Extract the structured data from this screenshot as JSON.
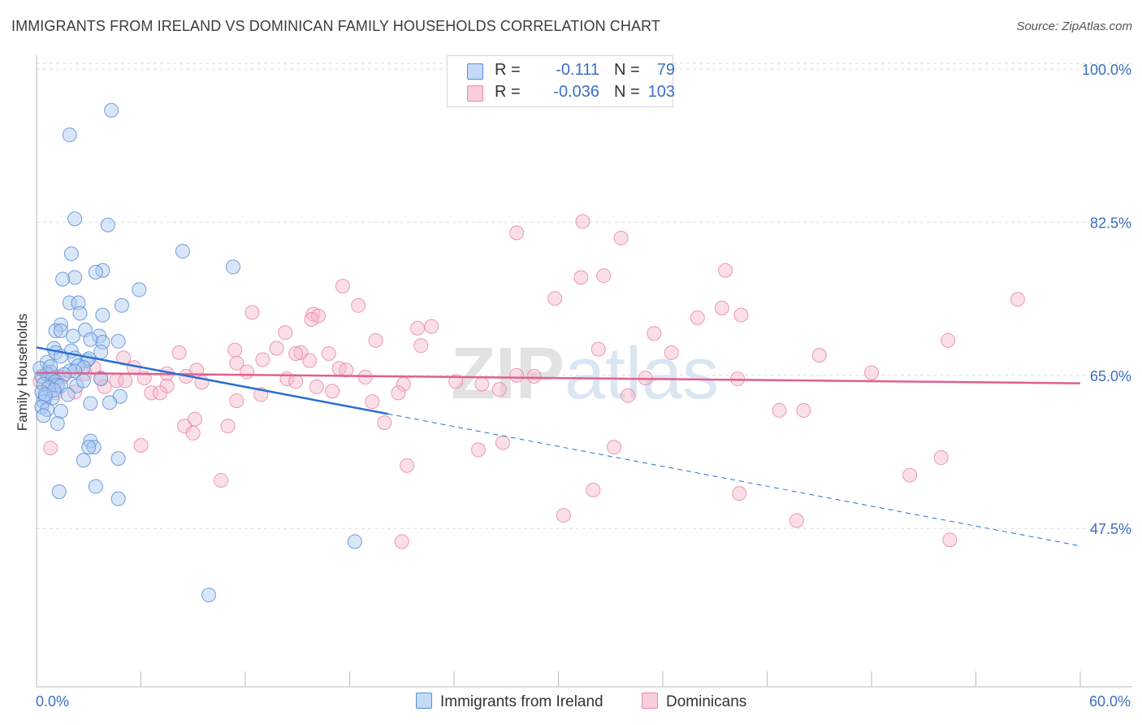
{
  "title": "IMMIGRANTS FROM IRELAND VS DOMINICAN FAMILY HOUSEHOLDS CORRELATION CHART",
  "source": "Source: ZipAtlas.com",
  "watermark": "ZIPatlas",
  "colors": {
    "ireland_fill": "#a8c8f0",
    "ireland_stroke": "#5a8fd6",
    "ireland_line": "#2a6fd1",
    "dominican_fill": "#f6b8cc",
    "dominican_stroke": "#e88aa8",
    "dominican_line": "#e0608e",
    "axis_text": "#3a6fc4",
    "grid": "#dddddd"
  },
  "legend_stats": [
    {
      "r_label": "R =",
      "r_value": "-0.111",
      "n_label": "N =",
      "n_value": "79"
    },
    {
      "r_label": "R =",
      "r_value": "-0.036",
      "n_label": "N =",
      "n_value": "103"
    }
  ],
  "chart_data": {
    "type": "scatter",
    "title": "IMMIGRANTS FROM IRELAND VS DOMINICAN FAMILY HOUSEHOLDS CORRELATION CHART",
    "xlabel": "",
    "ylabel": "Family Households",
    "xlim": [
      0,
      60
    ],
    "ylim": [
      29.4,
      101.6
    ],
    "x_tick_labels": [
      "0.0%",
      "60.0%"
    ],
    "y_ticks": [
      47.5,
      65.0,
      82.5,
      100.0
    ],
    "y_tick_labels": [
      "47.5%",
      "65.0%",
      "82.5%",
      "100.0%"
    ],
    "grid": true,
    "legend_position": "top-center",
    "series": [
      {
        "name": "Immigrants from Ireland",
        "trend": {
          "x0": 0,
          "y0": 68.2,
          "x1_solid": 20.2,
          "y1_solid": 60.6,
          "x1": 60,
          "y1": 45.5
        },
        "points": [
          [
            4.3,
            95.3
          ],
          [
            1.9,
            92.5
          ],
          [
            2.2,
            82.9
          ],
          [
            4.1,
            82.2
          ],
          [
            8.4,
            79.2
          ],
          [
            11.3,
            77.4
          ],
          [
            2.0,
            78.9
          ],
          [
            3.8,
            77.0
          ],
          [
            3.4,
            76.8
          ],
          [
            2.2,
            76.2
          ],
          [
            1.5,
            76.0
          ],
          [
            5.9,
            74.8
          ],
          [
            1.9,
            73.3
          ],
          [
            2.4,
            73.3
          ],
          [
            4.9,
            73.0
          ],
          [
            2.5,
            72.1
          ],
          [
            3.8,
            71.9
          ],
          [
            1.4,
            70.8
          ],
          [
            1.1,
            70.1
          ],
          [
            1.4,
            70.1
          ],
          [
            2.8,
            70.2
          ],
          [
            2.1,
            69.5
          ],
          [
            3.6,
            69.5
          ],
          [
            4.7,
            68.9
          ],
          [
            3.8,
            68.8
          ],
          [
            3.1,
            69.1
          ],
          [
            1.0,
            68.1
          ],
          [
            2.0,
            67.8
          ],
          [
            3.7,
            67.7
          ],
          [
            1.1,
            67.6
          ],
          [
            1.4,
            67.2
          ],
          [
            2.2,
            67.0
          ],
          [
            2.9,
            66.7
          ],
          [
            3.0,
            66.9
          ],
          [
            0.6,
            66.5
          ],
          [
            2.4,
            66.1
          ],
          [
            2.7,
            65.9
          ],
          [
            1.9,
            65.5
          ],
          [
            2.2,
            65.5
          ],
          [
            0.8,
            65.4
          ],
          [
            1.6,
            65.1
          ],
          [
            0.6,
            65.2
          ],
          [
            0.3,
            64.9
          ],
          [
            0.9,
            64.6
          ],
          [
            1.1,
            64.3
          ],
          [
            3.7,
            64.6
          ],
          [
            0.4,
            64.0
          ],
          [
            1.2,
            63.9
          ],
          [
            1.4,
            63.8
          ],
          [
            2.3,
            63.8
          ],
          [
            0.7,
            63.6
          ],
          [
            0.3,
            63.1
          ],
          [
            1.8,
            62.8
          ],
          [
            0.5,
            62.5
          ],
          [
            0.9,
            62.4
          ],
          [
            4.8,
            62.6
          ],
          [
            0.4,
            62.0
          ],
          [
            3.1,
            61.8
          ],
          [
            4.2,
            61.9
          ],
          [
            0.3,
            61.4
          ],
          [
            0.6,
            61.1
          ],
          [
            1.4,
            60.9
          ],
          [
            0.4,
            60.4
          ],
          [
            1.2,
            59.5
          ],
          [
            3.1,
            57.5
          ],
          [
            3.3,
            56.8
          ],
          [
            3.0,
            56.8
          ],
          [
            4.7,
            55.5
          ],
          [
            2.7,
            55.3
          ],
          [
            3.4,
            52.3
          ],
          [
            1.3,
            51.7
          ],
          [
            4.7,
            50.9
          ],
          [
            18.3,
            46.0
          ],
          [
            9.9,
            39.9
          ],
          [
            0.2,
            65.8
          ],
          [
            0.8,
            66.0
          ],
          [
            1.0,
            63.3
          ],
          [
            2.7,
            64.4
          ],
          [
            0.5,
            62.8
          ]
        ]
      },
      {
        "name": "Dominicans",
        "trend": {
          "x0": 0,
          "y0": 65.3,
          "x1": 60,
          "y1": 64.1
        },
        "points": [
          [
            31.4,
            82.6
          ],
          [
            27.6,
            81.3
          ],
          [
            33.6,
            80.7
          ],
          [
            39.6,
            77.0
          ],
          [
            31.3,
            76.2
          ],
          [
            32.6,
            76.4
          ],
          [
            17.6,
            75.2
          ],
          [
            56.4,
            73.7
          ],
          [
            29.8,
            73.8
          ],
          [
            18.5,
            73.0
          ],
          [
            39.4,
            72.7
          ],
          [
            12.4,
            72.2
          ],
          [
            15.9,
            72.0
          ],
          [
            16.2,
            71.8
          ],
          [
            15.8,
            71.4
          ],
          [
            40.5,
            71.9
          ],
          [
            38.0,
            71.6
          ],
          [
            22.7,
            70.6
          ],
          [
            21.9,
            70.4
          ],
          [
            14.3,
            69.9
          ],
          [
            35.5,
            69.8
          ],
          [
            19.5,
            69.0
          ],
          [
            52.4,
            69.0
          ],
          [
            22.1,
            68.4
          ],
          [
            13.8,
            68.1
          ],
          [
            11.4,
            67.9
          ],
          [
            8.2,
            67.6
          ],
          [
            15.2,
            67.6
          ],
          [
            32.3,
            68.0
          ],
          [
            36.5,
            67.6
          ],
          [
            14.9,
            67.5
          ],
          [
            16.8,
            67.5
          ],
          [
            5.0,
            67.0
          ],
          [
            45.0,
            67.3
          ],
          [
            13.0,
            66.8
          ],
          [
            11.5,
            66.4
          ],
          [
            15.7,
            66.7
          ],
          [
            17.4,
            65.8
          ],
          [
            17.8,
            65.6
          ],
          [
            12.1,
            65.4
          ],
          [
            3.3,
            65.9
          ],
          [
            5.6,
            65.9
          ],
          [
            9.2,
            65.6
          ],
          [
            48.0,
            65.3
          ],
          [
            7.5,
            65.2
          ],
          [
            27.6,
            65.0
          ],
          [
            28.6,
            64.9
          ],
          [
            0.6,
            65.1
          ],
          [
            1.0,
            64.8
          ],
          [
            1.5,
            64.8
          ],
          [
            8.6,
            64.9
          ],
          [
            18.9,
            64.8
          ],
          [
            14.4,
            64.6
          ],
          [
            3.7,
            64.7
          ],
          [
            6.2,
            64.7
          ],
          [
            35.0,
            64.7
          ],
          [
            40.3,
            64.6
          ],
          [
            4.6,
            64.4
          ],
          [
            5.1,
            64.4
          ],
          [
            14.9,
            64.3
          ],
          [
            24.1,
            64.3
          ],
          [
            9.5,
            64.2
          ],
          [
            21.1,
            64.0
          ],
          [
            25.6,
            64.0
          ],
          [
            7.5,
            63.8
          ],
          [
            16.1,
            63.7
          ],
          [
            26.6,
            63.4
          ],
          [
            17.0,
            63.2
          ],
          [
            20.8,
            63.0
          ],
          [
            12.9,
            62.8
          ],
          [
            1.1,
            63.0
          ],
          [
            6.6,
            63.0
          ],
          [
            7.1,
            63.0
          ],
          [
            2.2,
            63.1
          ],
          [
            34.0,
            62.7
          ],
          [
            11.5,
            62.1
          ],
          [
            19.3,
            62.0
          ],
          [
            9.1,
            60.0
          ],
          [
            42.7,
            61.0
          ],
          [
            44.1,
            61.0
          ],
          [
            20.0,
            59.6
          ],
          [
            8.5,
            59.2
          ],
          [
            9.0,
            58.4
          ],
          [
            11.0,
            59.2
          ],
          [
            26.8,
            57.3
          ],
          [
            0.8,
            56.7
          ],
          [
            6.0,
            57.0
          ],
          [
            25.4,
            56.5
          ],
          [
            33.2,
            56.8
          ],
          [
            52.0,
            55.6
          ],
          [
            21.3,
            54.7
          ],
          [
            50.2,
            53.6
          ],
          [
            10.6,
            53.0
          ],
          [
            32.0,
            51.9
          ],
          [
            40.4,
            51.5
          ],
          [
            30.3,
            49.0
          ],
          [
            43.7,
            48.4
          ],
          [
            21.0,
            46.0
          ],
          [
            52.5,
            46.2
          ],
          [
            1.2,
            64.9
          ],
          [
            2.8,
            65.2
          ],
          [
            3.9,
            63.7
          ],
          [
            0.2,
            64.3
          ]
        ]
      }
    ]
  },
  "bottom_legend": [
    {
      "label": "Immigrants from Ireland"
    },
    {
      "label": "Dominicans"
    }
  ]
}
